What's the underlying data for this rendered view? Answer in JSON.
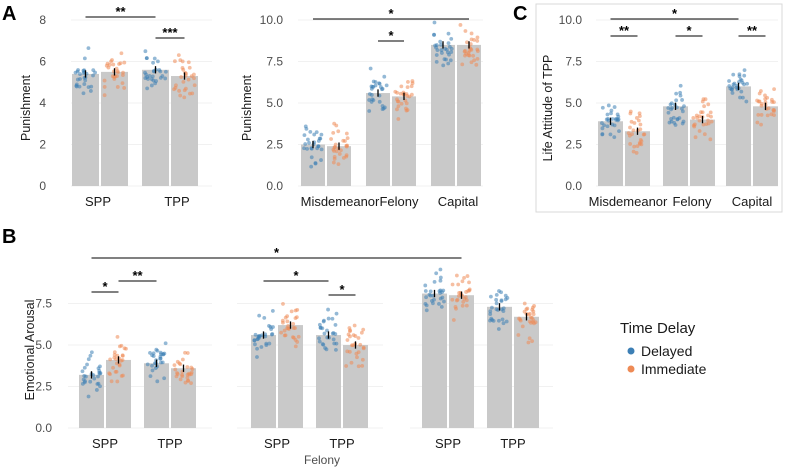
{
  "colors": {
    "delayed": "#3c7fb5",
    "immediate": "#ee8a55",
    "bar": "#c9c9c9",
    "grid": "#ececec"
  },
  "legend": {
    "title": "Time Delay",
    "items": [
      "Delayed",
      "Immediate"
    ]
  },
  "chart_data": [
    {
      "panel": "A",
      "type": "bar",
      "ylabel": "Punishment",
      "ylim": [
        0,
        8
      ],
      "yticks": [
        "0",
        "2",
        "4",
        "6",
        "8"
      ],
      "categories": [
        "SPP",
        "TPP"
      ],
      "series": [
        {
          "name": "Delayed",
          "values": [
            5.4,
            5.6
          ]
        },
        {
          "name": "Immediate",
          "values": [
            5.5,
            5.3
          ]
        }
      ],
      "annotations": [
        {
          "label": "**",
          "from": [
            0,
            "Delayed"
          ],
          "to": [
            1,
            "Delayed"
          ]
        },
        {
          "label": "***",
          "from": [
            1,
            "Delayed"
          ],
          "to": [
            1,
            "Immediate"
          ]
        }
      ]
    },
    {
      "panel": "A2",
      "type": "bar",
      "ylabel": "Punishment",
      "ylim": [
        0,
        10
      ],
      "yticks": [
        "0.0",
        "2.5",
        "5.0",
        "7.5",
        "10.0"
      ],
      "categories": [
        "Misdemeanor",
        "Felony",
        "Capital"
      ],
      "series": [
        {
          "name": "Delayed",
          "values": [
            2.5,
            5.6,
            8.5
          ]
        },
        {
          "name": "Immediate",
          "values": [
            2.4,
            5.4,
            8.5
          ]
        }
      ],
      "annotations": [
        {
          "label": "*",
          "from": [
            0,
            "Delayed"
          ],
          "to": [
            2,
            "Immediate"
          ]
        },
        {
          "label": "*",
          "from": [
            1,
            "Delayed"
          ],
          "to": [
            1,
            "Immediate"
          ]
        }
      ]
    },
    {
      "panel": "C",
      "type": "bar",
      "ylabel": "Life Attitude of TPP",
      "ylim": [
        0,
        10
      ],
      "yticks": [
        "0.0",
        "2.5",
        "5.0",
        "7.5",
        "10.0"
      ],
      "categories": [
        "Misdemeanor",
        "Felony",
        "Capital"
      ],
      "series": [
        {
          "name": "Delayed",
          "values": [
            3.9,
            4.8,
            6.0
          ]
        },
        {
          "name": "Immediate",
          "values": [
            3.3,
            4.0,
            4.8
          ]
        }
      ],
      "annotations": [
        {
          "label": "**",
          "from": [
            0,
            "Delayed"
          ],
          "to": [
            0,
            "Immediate"
          ]
        },
        {
          "label": "*",
          "from": [
            1,
            "Delayed"
          ],
          "to": [
            1,
            "Immediate"
          ]
        },
        {
          "label": "**",
          "from": [
            2,
            "Delayed"
          ],
          "to": [
            2,
            "Immediate"
          ]
        },
        {
          "label": "*",
          "from": [
            0,
            "Delayed"
          ],
          "to": [
            2,
            "Delayed"
          ]
        }
      ]
    },
    {
      "panel": "B",
      "type": "bar",
      "ylabel": "Emotional Arousal",
      "xlabel": "Felony",
      "ylim": [
        0,
        10
      ],
      "yticks": [
        "0.0",
        "2.5",
        "5.0",
        "7.5"
      ],
      "groups": [
        {
          "categories": [
            "SPP",
            "TPP"
          ],
          "series": [
            {
              "name": "Delayed",
              "values": [
                3.2,
                3.9
              ]
            },
            {
              "name": "Immediate",
              "values": [
                4.1,
                3.6
              ]
            }
          ]
        },
        {
          "categories": [
            "SPP",
            "TPP"
          ],
          "series": [
            {
              "name": "Delayed",
              "values": [
                5.6,
                5.6
              ]
            },
            {
              "name": "Immediate",
              "values": [
                6.2,
                5.0
              ]
            }
          ]
        },
        {
          "categories": [
            "SPP",
            "TPP"
          ],
          "series": [
            {
              "name": "Delayed",
              "values": [
                8.1,
                7.3
              ]
            },
            {
              "name": "Immediate",
              "values": [
                8.0,
                6.7
              ]
            }
          ]
        }
      ],
      "annotations": [
        {
          "label": "*",
          "group": 0,
          "from": [
            0,
            "Delayed"
          ],
          "to": [
            0,
            "Immediate"
          ]
        },
        {
          "label": "**",
          "group": 0,
          "from": [
            0,
            "Immediate"
          ],
          "to": [
            1,
            "Delayed"
          ]
        },
        {
          "label": "*",
          "group": 1,
          "from": [
            0,
            "Delayed"
          ],
          "to": [
            1,
            "Delayed"
          ]
        },
        {
          "label": "*",
          "group": 1,
          "from": [
            1,
            "Delayed"
          ],
          "to": [
            1,
            "Immediate"
          ]
        },
        {
          "label": "*",
          "from": [
            0,
            0,
            "Delayed"
          ],
          "to": [
            2,
            0,
            "Immediate"
          ]
        }
      ]
    }
  ]
}
